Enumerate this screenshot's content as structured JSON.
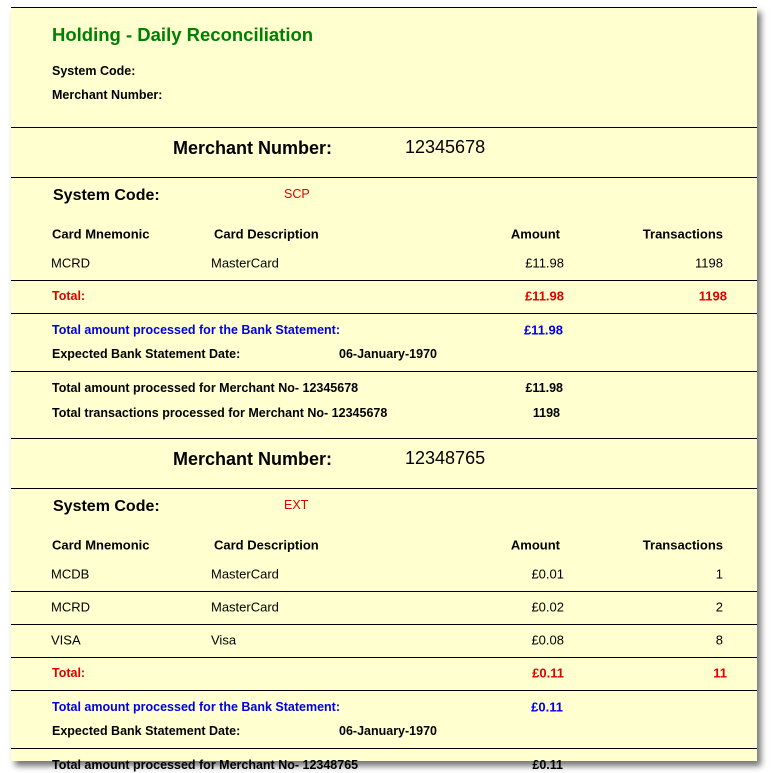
{
  "report": {
    "title": "Holding - Daily Reconciliation",
    "system_code_label": "System Code:",
    "merchant_number_label": "Merchant Number:",
    "colors": {
      "background": "#ffffd0",
      "title": "#008000",
      "total": "#e00000",
      "bank_statement": "#0000e0"
    }
  },
  "labels": {
    "merchant_number": "Merchant Number:",
    "system_code": "System Code:",
    "columns": [
      "Card Mnemonic",
      "Card Description",
      "Amount",
      "Transactions"
    ],
    "total": "Total:",
    "bank_statement": "Total amount processed for the Bank Statement:",
    "expected_date": "Expected Bank Statement Date:"
  },
  "merchants": [
    {
      "merchant_number": "12345678",
      "system_code": "SCP",
      "rows": [
        {
          "mnemonic": "MCRD",
          "description": "MasterCard",
          "amount": "£11.98",
          "transactions": "1198"
        }
      ],
      "total_amount": "£11.98",
      "total_transactions": "1198",
      "bank_statement_amount": "£11.98",
      "expected_date": "06-January-1970",
      "summary_amount_label": "Total amount  processed  for Merchant No- 12345678",
      "summary_amount": "£11.98",
      "summary_transactions_label": "Total transactions  processed  for Merchant No-  12345678",
      "summary_transactions": "1198"
    },
    {
      "merchant_number": "12348765",
      "system_code": "EXT",
      "rows": [
        {
          "mnemonic": "MCDB",
          "description": "MasterCard",
          "amount": "£0.01",
          "transactions": "1"
        },
        {
          "mnemonic": "MCRD",
          "description": "MasterCard",
          "amount": "£0.02",
          "transactions": "2"
        },
        {
          "mnemonic": "VISA",
          "description": "Visa",
          "amount": "£0.08",
          "transactions": "8"
        }
      ],
      "total_amount": "£0.11",
      "total_transactions": "11",
      "bank_statement_amount": "£0.11",
      "expected_date": "06-January-1970",
      "summary_amount_label": "Total amount  processed  for Merchant No- 12348765",
      "summary_amount": "£0.11"
    }
  ]
}
